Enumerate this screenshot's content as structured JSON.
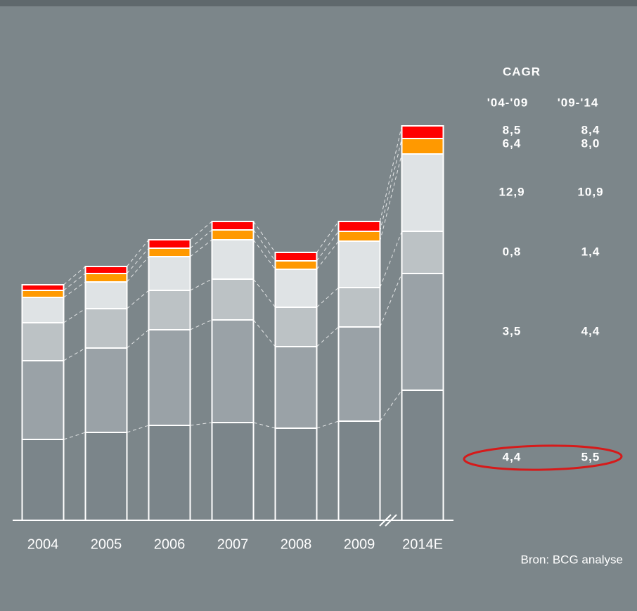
{
  "chart_data": {
    "type": "stacked_bar",
    "categories": [
      "2004",
      "2005",
      "2006",
      "2007",
      "2008",
      "2009",
      "2014E"
    ],
    "series": [
      {
        "color": "#7b858a",
        "values": [
          115,
          125,
          135,
          139,
          131,
          141,
          185
        ]
      },
      {
        "color": "#9aa2a7",
        "values": [
          112,
          120,
          136,
          146,
          116,
          134,
          166
        ]
      },
      {
        "color": "#bcc2c5",
        "values": [
          54,
          56,
          56,
          58,
          56,
          56,
          60
        ]
      },
      {
        "color": "#dfe3e5",
        "values": [
          36,
          38,
          48,
          56,
          54,
          66,
          110
        ]
      },
      {
        "color": "#ff9900",
        "values": [
          10,
          12,
          12,
          14,
          12,
          14,
          22
        ]
      },
      {
        "color": "#ff0000",
        "values": [
          8,
          10,
          12,
          12,
          12,
          14,
          18
        ]
      }
    ],
    "ylim": [
      0,
      560
    ],
    "cagr": {
      "title": "CAGR",
      "headers": [
        "'04-'09",
        "'09-'14"
      ],
      "rows": [
        [
          "8,5",
          "8,4"
        ],
        [
          "6,4",
          "8,0"
        ],
        [
          "12,9",
          "10,9"
        ],
        [
          "0,8",
          "1,4"
        ],
        [
          "3,5",
          "4,4"
        ],
        [
          "4,4",
          "5,5"
        ]
      ]
    },
    "source": "Bron: BCG analyse"
  }
}
